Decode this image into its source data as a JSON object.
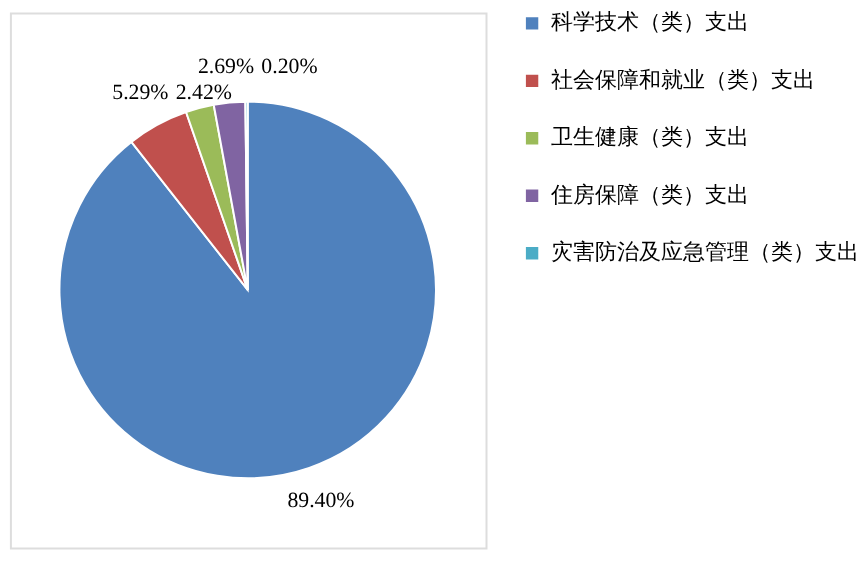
{
  "chart_data": {
    "type": "pie",
    "categories": [
      "科学技术（类）支出",
      "社会保障和就业（类）支出",
      "卫生健康（类）支出",
      "住房保障（类）支出",
      "灾害防治及应急管理（类）支出"
    ],
    "values": [
      89.4,
      5.29,
      2.42,
      2.69,
      0.2
    ],
    "colors": [
      "#4f81bd",
      "#c0504d",
      "#9bbb59",
      "#8064a2",
      "#4bacc6"
    ],
    "value_labels": [
      "89.40%",
      "5.29%",
      "2.42%",
      "2.69%",
      "0.20%"
    ],
    "legend": "right"
  }
}
